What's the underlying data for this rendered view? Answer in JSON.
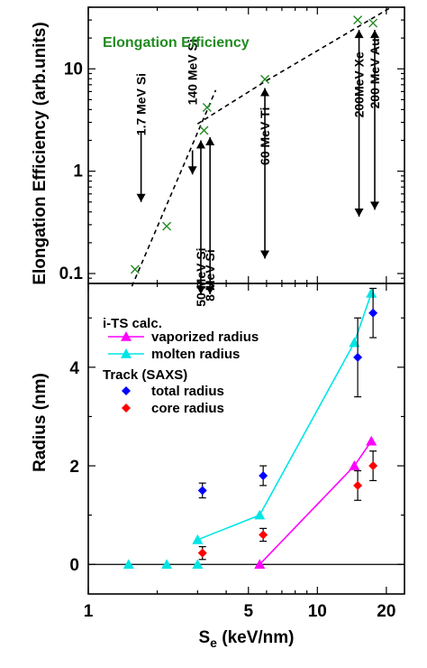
{
  "chart_data": [
    {
      "type": "scatter",
      "panel": "top",
      "title": "Elongation Efficiency",
      "title_color": "#228b22",
      "xlabel_main": "S",
      "xlabel_sub": "e",
      "xlabel_rest": " (keV/nm)",
      "ylabel": "Elongation Efficiency (arb.units)",
      "xscale": "log",
      "yscale": "log",
      "xlim": [
        1,
        24
      ],
      "ylim": [
        0.08,
        40
      ],
      "ytick_labels": [
        {
          "value": 0.1,
          "label": "0.1"
        },
        {
          "value": 1,
          "label": "1"
        },
        {
          "value": 10,
          "label": "10"
        }
      ],
      "series": [
        {
          "marker": "x",
          "color": "#228b22",
          "points": [
            {
              "x": 1.6,
              "y": 0.11
            },
            {
              "x": 2.2,
              "y": 0.29
            },
            {
              "x": 3.2,
              "y": 2.5
            },
            {
              "x": 3.3,
              "y": 4.2
            },
            {
              "x": 5.9,
              "y": 7.9
            },
            {
              "x": 15.0,
              "y": 30.0
            },
            {
              "x": 17.5,
              "y": 28.0
            }
          ]
        }
      ],
      "fit_lines": [
        {
          "style": "dashed",
          "points": [
            {
              "x": 1.55,
              "y": 0.075
            },
            {
              "x": 3.6,
              "y": 6.2
            }
          ]
        },
        {
          "style": "dashed",
          "points": [
            {
              "x": 3.0,
              "y": 2.9
            },
            {
              "x": 5.9,
              "y": 7.5
            },
            {
              "x": 21.0,
              "y": 40.0
            }
          ]
        }
      ],
      "annotations": [
        {
          "text": "1.7 MeV Si",
          "x": 1.7,
          "y": 4.5,
          "arrow_from": 2.4,
          "arrow_to": 0.5
        },
        {
          "text": "140 MeV Si",
          "x": 2.85,
          "y": 9.3,
          "arrow_from": 1.6,
          "arrow_to": 0.93
        },
        {
          "text": "50 MeV Si",
          "x": 3.1,
          "y": 0.092,
          "arrow_from": 2.0,
          "arrow_to": 0.062,
          "double_headed": true
        },
        {
          "text": "8 MeV Si",
          "x": 3.4,
          "y": 0.096,
          "arrow_from": 2.15,
          "arrow_to": 0.066,
          "double_headed": true
        },
        {
          "text": "60 MeV Ti",
          "x": 5.9,
          "y": 2.2,
          "arrow_from": 6.5,
          "arrow_to": 0.14,
          "double_headed": true
        },
        {
          "text": "200MeV Xe",
          "x": 15.2,
          "y": 7.0,
          "arrow_from": 24.0,
          "arrow_to": 0.36,
          "double_headed": true
        },
        {
          "text": "200 MeV Au",
          "x": 17.8,
          "y": 9.0,
          "arrow_from": 24.0,
          "arrow_to": 0.42,
          "double_headed": true
        }
      ]
    },
    {
      "type": "scatter",
      "panel": "bottom",
      "ylabel": "Radius (nm)",
      "xlabel_main": "S",
      "xlabel_sub": "e",
      "xlabel_rest": " (keV/nm)",
      "xscale": "log",
      "xlim": [
        1,
        24
      ],
      "ylim": [
        -0.6,
        5.7
      ],
      "xtick_labels": [
        {
          "value": 1,
          "label": "1"
        },
        {
          "value": 5,
          "label": "5"
        },
        {
          "value": 10,
          "label": "10"
        },
        {
          "value": 20,
          "label": "20"
        }
      ],
      "ytick_labels": [
        {
          "value": 0,
          "label": "0"
        },
        {
          "value": 2,
          "label": "2"
        },
        {
          "value": 4,
          "label": "4"
        }
      ],
      "legend": {
        "group1_title": "i-TS calc.",
        "group2_title": "Track (SAXS)",
        "placement": "top-left"
      },
      "series": [
        {
          "name": "vaporized radius",
          "group": 1,
          "color": "#ff00ff",
          "marker": "triangle",
          "line": true,
          "points": [
            {
              "x": 5.6,
              "y": 0.0
            },
            {
              "x": 14.5,
              "y": 2.0
            },
            {
              "x": 17.2,
              "y": 2.5
            }
          ]
        },
        {
          "name": "molten radius",
          "group": 1,
          "color": "#00e5e5",
          "marker": "triangle",
          "line": true,
          "points": [
            {
              "x": 1.5,
              "y": 0.0
            },
            {
              "x": 2.2,
              "y": 0.0
            },
            {
              "x": 3.0,
              "y": 0.0
            },
            {
              "x": 3.0,
              "y": 0.5
            },
            {
              "x": 5.6,
              "y": 1.0
            },
            {
              "x": 14.5,
              "y": 4.5
            },
            {
              "x": 17.2,
              "y": 5.5
            }
          ],
          "line_points": [
            {
              "x": 3.0,
              "y": 0.5
            },
            {
              "x": 5.6,
              "y": 1.0
            },
            {
              "x": 14.5,
              "y": 4.5
            },
            {
              "x": 17.2,
              "y": 5.5
            }
          ]
        },
        {
          "name": "total radius",
          "group": 2,
          "color": "#0000ff",
          "marker": "diamond",
          "line": false,
          "points": [
            {
              "x": 3.15,
              "y": 1.5,
              "err": 0.15
            },
            {
              "x": 5.8,
              "y": 1.8,
              "err": 0.2
            },
            {
              "x": 15.0,
              "y": 4.2,
              "err": 0.8
            },
            {
              "x": 17.5,
              "y": 5.1,
              "err": 0.5
            }
          ]
        },
        {
          "name": "core radius",
          "group": 2,
          "color": "#ff0000",
          "marker": "diamond",
          "line": false,
          "points": [
            {
              "x": 3.15,
              "y": 0.23,
              "err": 0.13
            },
            {
              "x": 5.8,
              "y": 0.6,
              "err": 0.13
            },
            {
              "x": 15.0,
              "y": 1.6,
              "err": 0.3
            },
            {
              "x": 17.5,
              "y": 2.0,
              "err": 0.3
            }
          ]
        }
      ]
    }
  ]
}
